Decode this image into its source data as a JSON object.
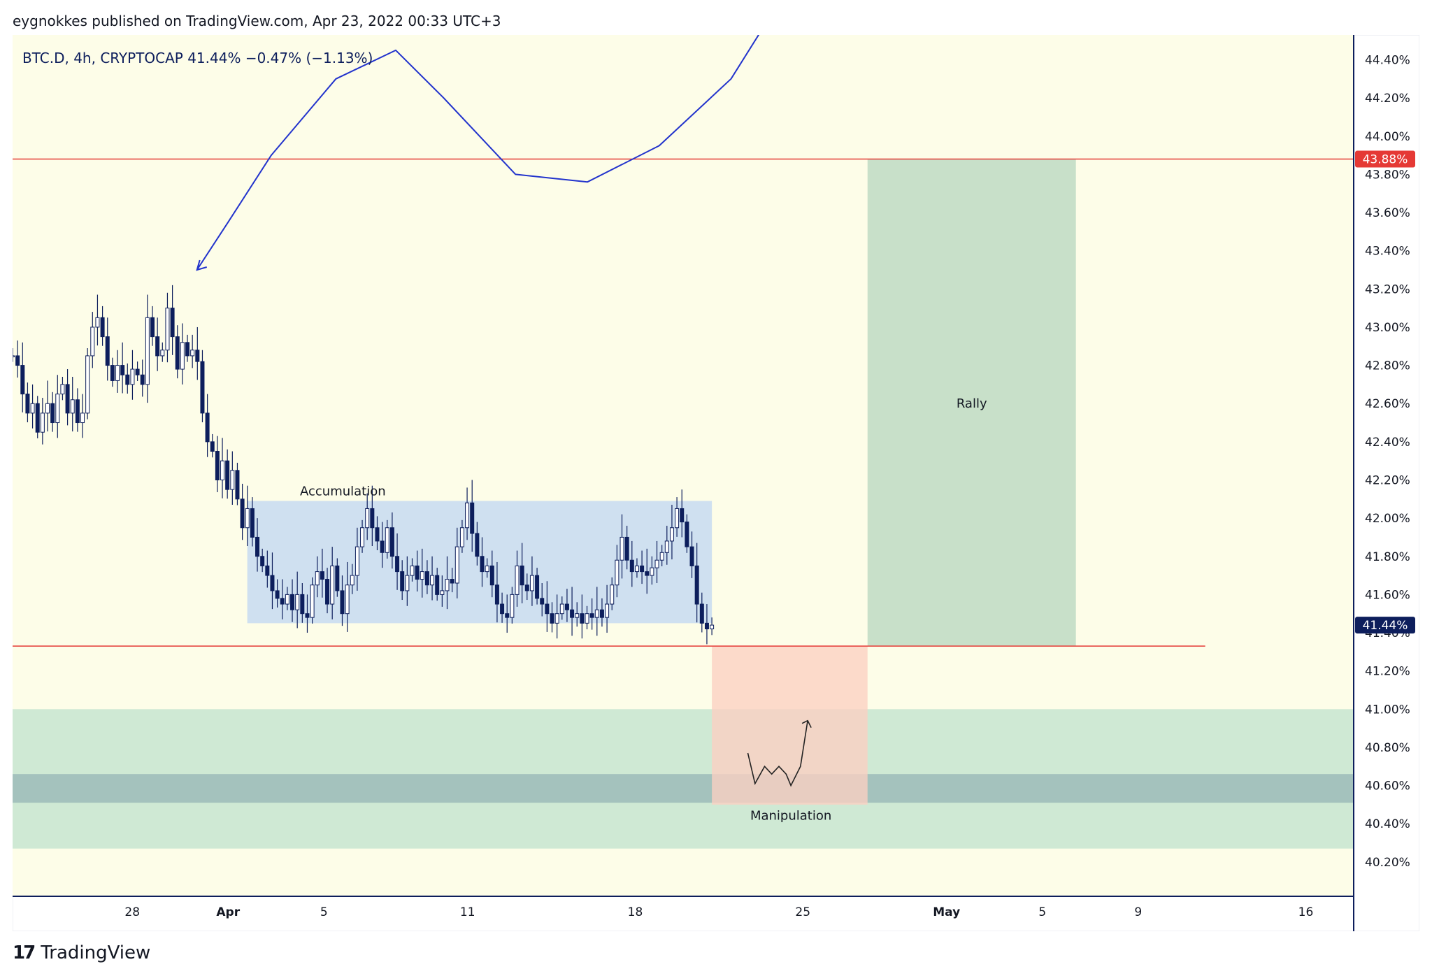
{
  "header": {
    "published": "eygnokkes published on TradingView.com, Apr 23, 2022 00:33 UTC+3"
  },
  "brand": {
    "logo": "17",
    "name": "TradingView"
  },
  "colors": {
    "bg": "#fdfde8",
    "candle": "#0d1e5c",
    "hline": "#e53935",
    "accum": "#cfe0f0",
    "rally": "#c8e0c9",
    "manip": "#fbcfc1",
    "zone": "#cfe9d4",
    "zone_dark": "#a4c2bd",
    "curve": "#2233cc"
  },
  "chart_data": {
    "type": "candlestick",
    "symbol": "BTC.D, 4h, CRYPTOCAP",
    "last": "41.44%",
    "change": "−0.47% (−1.13%)",
    "ylim": [
      40.02,
      44.53
    ],
    "y_ticks": [
      "44.40%",
      "44.20%",
      "44.00%",
      "43.80%",
      "43.60%",
      "43.40%",
      "43.20%",
      "43.00%",
      "42.80%",
      "42.60%",
      "42.40%",
      "42.20%",
      "42.00%",
      "41.80%",
      "41.60%",
      "41.40%",
      "41.20%",
      "41.00%",
      "40.80%",
      "40.60%",
      "40.40%",
      "40.20%"
    ],
    "x_ticks": [
      {
        "label": "28",
        "day": 0
      },
      {
        "label": "Apr",
        "day": 4
      },
      {
        "label": "5",
        "day": 8
      },
      {
        "label": "11",
        "day": 14
      },
      {
        "label": "18",
        "day": 21
      },
      {
        "label": "25",
        "day": 28
      },
      {
        "label": "May",
        "day": 34
      },
      {
        "label": "5",
        "day": 38
      },
      {
        "label": "9",
        "day": 42
      },
      {
        "label": "16",
        "day": 49
      }
    ],
    "x_range_days": [
      -5,
      51
    ],
    "price_labels": [
      {
        "value": 43.88,
        "text": "43.88%",
        "color": "#e53935"
      },
      {
        "value": 41.44,
        "text": "41.44%",
        "color": "#0d1e5c"
      }
    ],
    "hlines": [
      43.88,
      41.33
    ],
    "series_close": [
      42.85,
      42.8,
      42.65,
      42.55,
      42.6,
      42.45,
      42.55,
      42.6,
      42.5,
      42.65,
      42.7,
      42.55,
      42.62,
      42.5,
      42.55,
      42.85,
      43.0,
      43.05,
      42.95,
      42.8,
      42.72,
      42.8,
      42.75,
      42.7,
      42.78,
      42.75,
      42.7,
      43.05,
      42.95,
      42.85,
      42.88,
      43.1,
      42.95,
      42.78,
      42.92,
      42.85,
      42.88,
      42.82,
      42.55,
      42.4,
      42.35,
      42.2,
      42.3,
      42.15,
      42.25,
      42.1,
      41.95,
      42.05,
      41.9,
      41.8,
      41.75,
      41.7,
      41.62,
      41.58,
      41.55,
      41.6,
      41.52,
      41.6,
      41.5,
      41.48,
      41.65,
      41.72,
      41.68,
      41.55,
      41.75,
      41.62,
      41.5,
      41.65,
      41.7,
      41.85,
      41.95,
      42.05,
      41.95,
      41.88,
      41.82,
      41.95,
      41.8,
      41.72,
      41.62,
      41.7,
      41.75,
      41.68,
      41.72,
      41.65,
      41.7,
      41.6,
      41.62,
      41.68,
      41.66,
      41.85,
      41.95,
      42.08,
      41.92,
      41.8,
      41.72,
      41.75,
      41.65,
      41.55,
      41.5,
      41.48,
      41.6,
      41.75,
      41.65,
      41.62,
      41.7,
      41.58,
      41.55,
      41.5,
      41.45,
      41.5,
      41.55,
      41.52,
      41.48,
      41.5,
      41.45,
      41.5,
      41.48,
      41.52,
      41.48,
      41.55,
      41.65,
      41.78,
      41.9,
      41.78,
      41.72,
      41.75,
      41.72,
      41.7,
      41.74,
      41.78,
      41.82,
      41.88,
      41.95,
      42.05,
      41.98,
      41.85,
      41.75,
      41.55,
      41.45,
      41.42,
      41.44
    ],
    "annotations": [
      {
        "text": "Accumulation",
        "kind": "box",
        "x0_day": 4.8,
        "x1_day": 24.2,
        "y0": 41.45,
        "y1": 42.09
      },
      {
        "text": "Rally",
        "kind": "box",
        "x0_day": 30.7,
        "x1_day": 39.4,
        "y0": 41.33,
        "y1": 43.88
      },
      {
        "text": "Manipulation",
        "kind": "box",
        "x0_day": 24.2,
        "x1_day": 30.7,
        "y0": 40.5,
        "y1": 41.33
      }
    ],
    "zones": [
      {
        "y0": 40.27,
        "y1": 41.0,
        "color": "#cfe9d4"
      },
      {
        "y0": 40.51,
        "y1": 40.66,
        "color": "#a4c2bd"
      }
    ]
  }
}
